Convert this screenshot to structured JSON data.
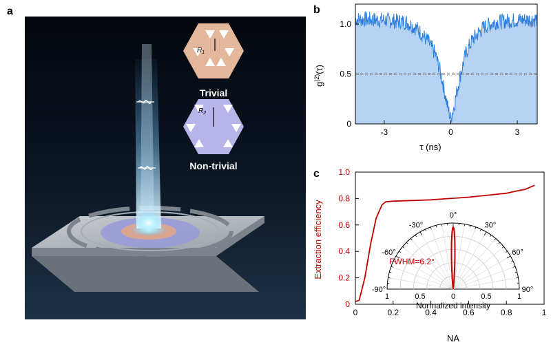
{
  "panel_a": {
    "label": "a",
    "trivial_label": "Trivial",
    "nontrivial_label": "Non-trivial",
    "r1_label": "R",
    "r1_sub": "1",
    "r2_label": "R",
    "r2_sub": "2"
  },
  "panel_b": {
    "label": "b",
    "chart_data": {
      "type": "line",
      "ylabel_base": "g",
      "ylabel_sup": "(2)",
      "ylabel_tail": "(τ)",
      "xlabel": "τ (ns)",
      "xlim": [
        -4.3,
        3.9
      ],
      "ylim": [
        0,
        1.2
      ],
      "xticks": [
        "-3",
        "0",
        "3"
      ],
      "yticks": [
        "0",
        "0.5",
        "1.0"
      ],
      "threshold": 0.5,
      "fill_color": "#b6d3f3",
      "line_color": "#2f7fdc",
      "series": [
        {
          "x": [
            -4.3,
            -3.0,
            -2.0,
            -1.5,
            -1.0,
            -0.7,
            -0.5,
            -0.3,
            -0.15,
            0.0,
            0.15,
            0.3,
            0.5,
            0.7,
            1.0,
            1.5,
            2.0,
            3.0,
            3.9
          ],
          "values": [
            1.05,
            1.04,
            1.02,
            0.95,
            0.82,
            0.7,
            0.55,
            0.35,
            0.18,
            0.05,
            0.18,
            0.35,
            0.55,
            0.72,
            0.85,
            0.97,
            1.02,
            1.04,
            1.05
          ]
        }
      ]
    }
  },
  "panel_c": {
    "label": "c",
    "chart_data": [
      {
        "type": "line",
        "xlabel": "NA",
        "ylabel": "Extraction efficiency",
        "xlim": [
          0,
          1.0
        ],
        "ylim": [
          0,
          1.0
        ],
        "xticks": [
          "0",
          "0.2",
          "0.4",
          "0.6",
          "0.8",
          "1"
        ],
        "yticks": [
          "0",
          "0.2",
          "0.4",
          "0.6",
          "0.8",
          "1.0"
        ],
        "line_color": "#c00000",
        "series": [
          {
            "x": [
              0.0,
              0.02,
              0.05,
              0.08,
              0.11,
              0.14,
              0.16,
              0.2,
              0.3,
              0.4,
              0.5,
              0.6,
              0.7,
              0.8,
              0.85,
              0.9,
              0.95
            ],
            "values": [
              0.02,
              0.03,
              0.2,
              0.45,
              0.65,
              0.75,
              0.775,
              0.78,
              0.785,
              0.79,
              0.8,
              0.81,
              0.825,
              0.84,
              0.855,
              0.87,
              0.9
            ]
          }
        ]
      },
      {
        "type": "polar",
        "xlabel": "Normalized intensity",
        "angle_labels": [
          "-90°",
          "-60°",
          "-30°",
          "0°",
          "30°",
          "60°",
          "90°"
        ],
        "angle_ticks": [
          -90,
          -60,
          -30,
          0,
          30,
          60,
          90
        ],
        "radial_labels": [
          "1",
          "0.5",
          "0",
          "0.5",
          "1"
        ],
        "annotation": "FWHM=6.2°",
        "fwhm_deg": 6.2
      }
    ]
  }
}
